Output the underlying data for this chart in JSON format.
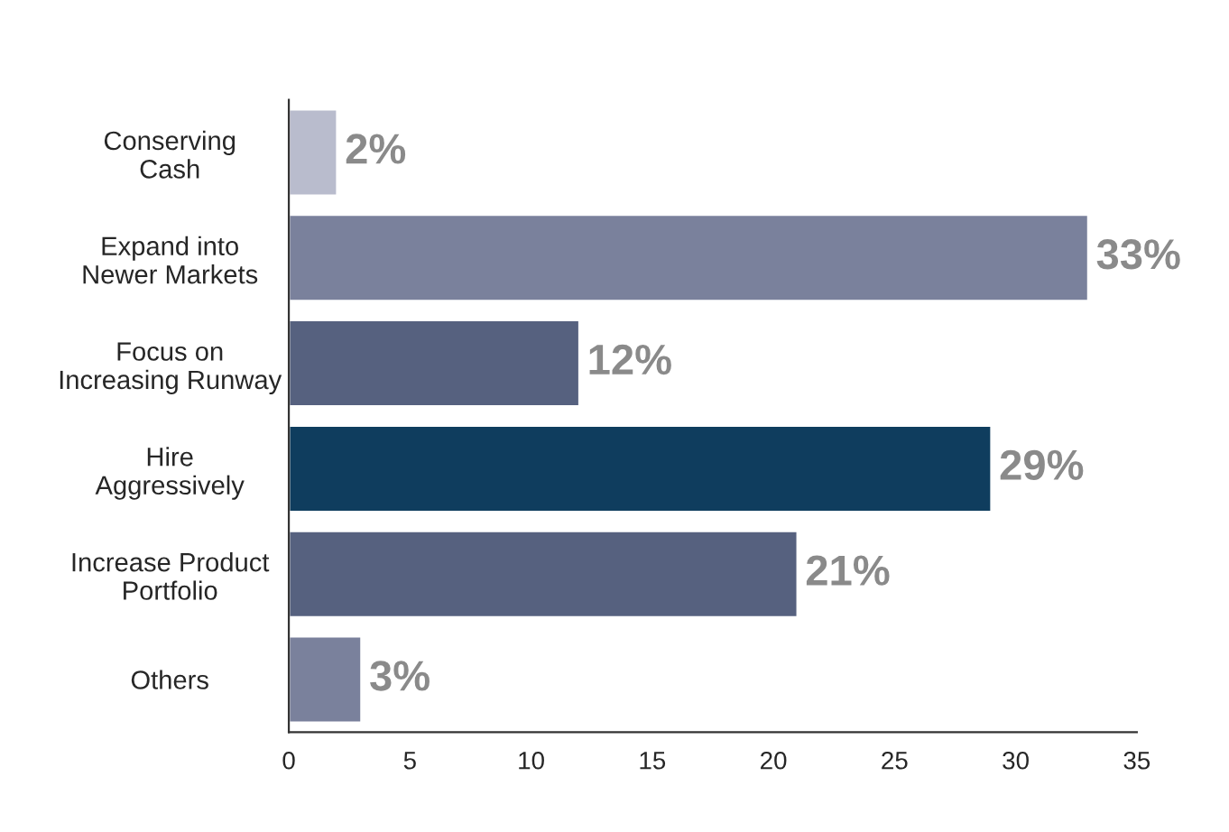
{
  "chart_data": {
    "type": "bar",
    "orientation": "horizontal",
    "categories": [
      "Conserving\nCash",
      "Expand into\nNewer Markets",
      "Focus on\nIncreasing Runway",
      "Hire\nAggressively",
      "Increase Product\nPortfolio",
      "Others"
    ],
    "values": [
      2,
      33,
      12,
      29,
      21,
      3
    ],
    "colors": [
      "#b9bccd",
      "#7a819c",
      "#56617f",
      "#0f3d5e",
      "#56617f",
      "#7a819c"
    ],
    "value_labels": [
      "2%",
      "33%",
      "12%",
      "29%",
      "21%",
      "3%"
    ],
    "xlim": [
      0,
      35
    ],
    "xticks": [
      0,
      5,
      10,
      15,
      20,
      25,
      30,
      35
    ],
    "grid": false,
    "legend": false
  }
}
